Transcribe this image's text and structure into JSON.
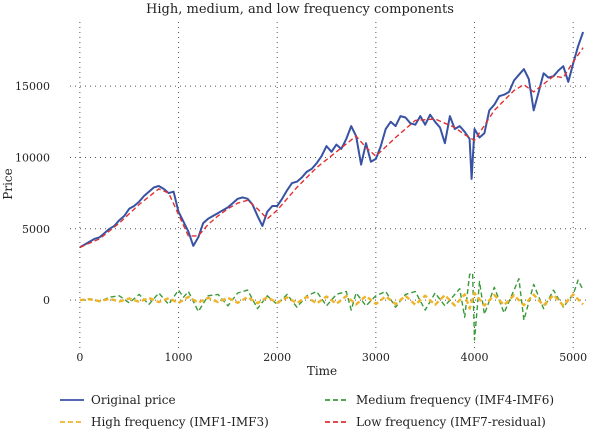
{
  "chart_data": {
    "type": "line",
    "title": "High, medium, and low frequency components",
    "xlabel": "Time",
    "ylabel": "Price",
    "xlim": [
      -100,
      5150
    ],
    "ylim": [
      -3500,
      19500
    ],
    "x_ticks": [
      0,
      1000,
      2000,
      3000,
      4000,
      5000
    ],
    "x_tick_labels": [
      "0",
      "1000",
      "2000",
      "3000",
      "4000",
      "5000"
    ],
    "y_ticks": [
      0,
      5000,
      10000,
      15000
    ],
    "y_tick_labels": [
      "0",
      "5000",
      "10000",
      "15000"
    ],
    "grid": true,
    "legend_position": "bottom",
    "series": [
      {
        "name": "Original price",
        "color": "#3953a4",
        "style": "solid",
        "x": [
          0,
          50,
          100,
          150,
          200,
          250,
          300,
          350,
          400,
          450,
          500,
          550,
          600,
          650,
          700,
          750,
          800,
          850,
          900,
          950,
          1000,
          1050,
          1100,
          1150,
          1200,
          1250,
          1300,
          1350,
          1400,
          1450,
          1500,
          1550,
          1600,
          1650,
          1700,
          1750,
          1800,
          1850,
          1900,
          1950,
          2000,
          2050,
          2100,
          2150,
          2200,
          2250,
          2300,
          2350,
          2400,
          2450,
          2500,
          2550,
          2600,
          2650,
          2700,
          2750,
          2800,
          2850,
          2900,
          2950,
          3000,
          3050,
          3100,
          3150,
          3200,
          3250,
          3300,
          3350,
          3400,
          3450,
          3500,
          3550,
          3600,
          3650,
          3700,
          3750,
          3800,
          3850,
          3900,
          3950,
          3970,
          4000,
          4050,
          4100,
          4150,
          4200,
          4250,
          4300,
          4350,
          4400,
          4450,
          4500,
          4550,
          4600,
          4650,
          4700,
          4750,
          4800,
          4850,
          4900,
          4950,
          5000,
          5050,
          5100
        ],
        "y": [
          3700,
          3900,
          4100,
          4300,
          4400,
          4700,
          5000,
          5200,
          5600,
          5900,
          6400,
          6600,
          6900,
          7300,
          7600,
          7900,
          8000,
          7800,
          7500,
          7600,
          6200,
          5500,
          4800,
          3800,
          4400,
          5400,
          5700,
          5900,
          6100,
          6300,
          6500,
          6800,
          7100,
          7200,
          7100,
          6700,
          5900,
          5200,
          6200,
          6600,
          6600,
          7100,
          7700,
          8200,
          8300,
          8600,
          9000,
          9200,
          9600,
          10100,
          10800,
          10400,
          10900,
          10600,
          11300,
          12200,
          11500,
          9500,
          11000,
          9700,
          9900,
          10800,
          12000,
          12500,
          12200,
          12900,
          12800,
          12400,
          12300,
          12900,
          12300,
          13000,
          12500,
          12100,
          11000,
          12900,
          12000,
          12200,
          11800,
          11300,
          8500,
          12000,
          11400,
          11700,
          13300,
          13700,
          14300,
          14400,
          14600,
          15400,
          15800,
          16200,
          15500,
          13300,
          14600,
          15900,
          15600,
          15700,
          16100,
          16400,
          15300,
          16600,
          17800,
          18800
        ]
      },
      {
        "name": "Medium frequency (IMF4-IMF6)",
        "color": "#3a9a3a",
        "style": "dashed",
        "x": [
          0,
          100,
          200,
          300,
          400,
          500,
          600,
          700,
          800,
          900,
          1000,
          1050,
          1100,
          1200,
          1300,
          1400,
          1500,
          1600,
          1700,
          1800,
          1900,
          2000,
          2100,
          2200,
          2300,
          2400,
          2500,
          2600,
          2700,
          2750,
          2800,
          2900,
          3000,
          3100,
          3200,
          3300,
          3400,
          3500,
          3600,
          3700,
          3800,
          3850,
          3900,
          3950,
          3980,
          4000,
          4050,
          4100,
          4200,
          4300,
          4400,
          4450,
          4500,
          4600,
          4700,
          4800,
          4900,
          5000,
          5050,
          5100
        ],
        "y": [
          0,
          100,
          -100,
          200,
          300,
          -200,
          400,
          -300,
          500,
          -300,
          700,
          200,
          600,
          -800,
          300,
          400,
          -400,
          500,
          700,
          -600,
          300,
          -300,
          400,
          -500,
          300,
          600,
          -400,
          400,
          600,
          -700,
          500,
          -400,
          300,
          600,
          -500,
          400,
          600,
          -700,
          500,
          -400,
          400,
          800,
          -1200,
          1800,
          1900,
          -2800,
          1300,
          -1000,
          900,
          -900,
          700,
          1500,
          -1400,
          1100,
          -600,
          700,
          -500,
          400,
          1400,
          700
        ]
      },
      {
        "name": "High frequency (IMF1-IMF3)",
        "color": "#f0b429",
        "style": "dashed",
        "x": [
          0,
          100,
          200,
          300,
          400,
          500,
          600,
          700,
          800,
          900,
          1000,
          1100,
          1200,
          1300,
          1400,
          1500,
          1600,
          1700,
          1800,
          1900,
          2000,
          2100,
          2200,
          2300,
          2400,
          2500,
          2600,
          2700,
          2800,
          2900,
          3000,
          3100,
          3200,
          3300,
          3400,
          3500,
          3600,
          3700,
          3800,
          3900,
          3950,
          4000,
          4100,
          4200,
          4300,
          4400,
          4500,
          4600,
          4700,
          4800,
          4900,
          5000,
          5100
        ],
        "y": [
          0,
          60,
          -80,
          90,
          -100,
          110,
          -120,
          150,
          -140,
          130,
          -200,
          220,
          -180,
          160,
          -150,
          170,
          -190,
          210,
          -220,
          200,
          -180,
          190,
          -210,
          230,
          -240,
          250,
          -260,
          280,
          -300,
          290,
          -270,
          260,
          -280,
          300,
          -320,
          310,
          -330,
          350,
          -380,
          400,
          -600,
          500,
          -380,
          360,
          -350,
          340,
          -360,
          380,
          -370,
          360,
          -380,
          400,
          -300
        ]
      },
      {
        "name": "Low frequency (IMF7-residual)",
        "color": "#e03131",
        "style": "dashed",
        "x": [
          0,
          200,
          400,
          600,
          800,
          900,
          1000,
          1100,
          1200,
          1300,
          1400,
          1500,
          1600,
          1700,
          1800,
          1900,
          2000,
          2200,
          2400,
          2600,
          2800,
          2900,
          3000,
          3200,
          3400,
          3600,
          3800,
          3900,
          4000,
          4200,
          4400,
          4500,
          4600,
          4800,
          4900,
          5000,
          5100
        ],
        "y": [
          3700,
          4300,
          5400,
          6700,
          7800,
          7500,
          6000,
          4500,
          4500,
          5300,
          5900,
          6400,
          6800,
          7000,
          6400,
          5700,
          6300,
          7900,
          9300,
          10400,
          11500,
          10700,
          10100,
          11400,
          12600,
          12700,
          12100,
          11600,
          11200,
          13300,
          14700,
          15100,
          14600,
          15700,
          15600,
          16700,
          17700
        ]
      }
    ]
  }
}
